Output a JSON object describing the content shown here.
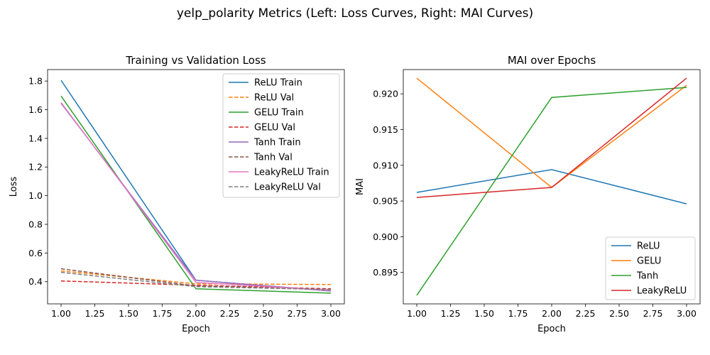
{
  "figure": {
    "suptitle": "yelp_polarity Metrics (Left: Loss Curves, Right: MAI Curves)"
  },
  "chart_data": [
    {
      "type": "line",
      "title": "Training vs Validation Loss",
      "xlabel": "Epoch",
      "ylabel": "Loss",
      "xlim": [
        0.9,
        3.1
      ],
      "ylim": [
        0.245,
        1.88
      ],
      "xticks": [
        "1.00",
        "1.25",
        "1.50",
        "1.75",
        "2.00",
        "2.25",
        "2.50",
        "2.75",
        "3.00"
      ],
      "yticks": [
        "0.4",
        "0.6",
        "0.8",
        "1.0",
        "1.2",
        "1.4",
        "1.6",
        "1.8"
      ],
      "x": [
        1,
        2,
        3
      ],
      "legend_position": "upper right",
      "grid": false,
      "series": [
        {
          "name": "ReLU Train",
          "values": [
            1.805,
            0.41,
            0.335
          ],
          "color": "#1f77b4",
          "style": "solid"
        },
        {
          "name": "ReLU Val",
          "values": [
            0.475,
            0.385,
            0.38
          ],
          "color": "#ff7f0e",
          "style": "dashed"
        },
        {
          "name": "GELU Train",
          "values": [
            1.695,
            0.35,
            0.32
          ],
          "color": "#2ca02c",
          "style": "solid"
        },
        {
          "name": "GELU Val",
          "values": [
            0.405,
            0.375,
            0.35
          ],
          "color": "#d62728",
          "style": "dashed"
        },
        {
          "name": "Tanh Train",
          "values": [
            1.645,
            0.41,
            0.335
          ],
          "color": "#9467bd",
          "style": "solid"
        },
        {
          "name": "Tanh Val",
          "values": [
            0.49,
            0.37,
            0.345
          ],
          "color": "#8c564b",
          "style": "dashed"
        },
        {
          "name": "LeakyReLU Train",
          "values": [
            1.65,
            0.395,
            0.34
          ],
          "color": "#e377c2",
          "style": "solid"
        },
        {
          "name": "LeakyReLU Val",
          "values": [
            0.465,
            0.365,
            0.345
          ],
          "color": "#7f7f7f",
          "style": "dashed"
        }
      ]
    },
    {
      "type": "line",
      "title": "MAI over Epochs",
      "xlabel": "Epoch",
      "ylabel": "MAI",
      "xlim": [
        0.9,
        3.1
      ],
      "ylim": [
        0.8906,
        0.9234
      ],
      "xticks": [
        "1.00",
        "1.25",
        "1.50",
        "1.75",
        "2.00",
        "2.25",
        "2.50",
        "2.75",
        "3.00"
      ],
      "yticks": [
        "0.895",
        "0.900",
        "0.905",
        "0.910",
        "0.915",
        "0.920"
      ],
      "x": [
        1,
        2,
        3
      ],
      "legend_position": "lower right",
      "grid": false,
      "series": [
        {
          "name": "ReLU",
          "values": [
            0.9062,
            0.9094,
            0.9046
          ],
          "color": "#1f77b4",
          "style": "solid"
        },
        {
          "name": "GELU",
          "values": [
            0.9222,
            0.9069,
            0.9212
          ],
          "color": "#ff7f0e",
          "style": "solid"
        },
        {
          "name": "Tanh",
          "values": [
            0.8918,
            0.9195,
            0.9209
          ],
          "color": "#2ca02c",
          "style": "solid"
        },
        {
          "name": "LeakyReLU",
          "values": [
            0.9055,
            0.9069,
            0.9222
          ],
          "color": "#d62728",
          "style": "solid"
        }
      ]
    }
  ]
}
